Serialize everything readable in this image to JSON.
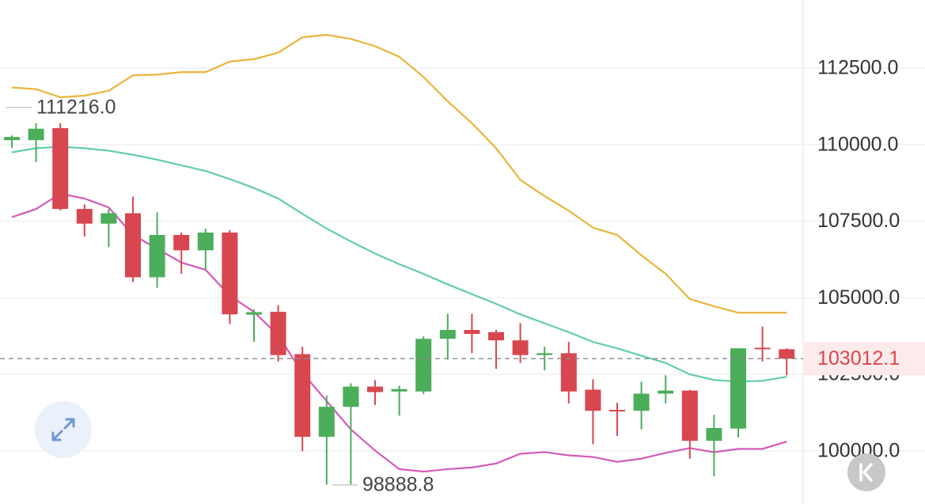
{
  "chart_data": {
    "type": "candlestick",
    "ylim": [
      98267,
      114722
    ],
    "yticks": [
      {
        "value": 112500,
        "label": "112500.0"
      },
      {
        "value": 110000,
        "label": "110000.0"
      },
      {
        "value": 107500,
        "label": "107500.0"
      },
      {
        "value": 105000,
        "label": "105000.0"
      },
      {
        "value": 102500,
        "label": "102500.0"
      },
      {
        "value": 100000,
        "label": "100000.0"
      }
    ],
    "grid": true,
    "up_color": "#4cad5b",
    "down_color": "#d8474f",
    "candles": [
      {
        "open": 110146,
        "high": 110300,
        "low": 109900,
        "close": 110250
      },
      {
        "open": 110146,
        "high": 110700,
        "low": 109430,
        "close": 110520
      },
      {
        "open": 110540,
        "high": 110700,
        "low": 107850,
        "close": 107900
      },
      {
        "open": 107900,
        "high": 108050,
        "low": 107000,
        "close": 107420
      },
      {
        "open": 107420,
        "high": 107900,
        "low": 106650,
        "close": 107760
      },
      {
        "open": 107760,
        "high": 108300,
        "low": 105510,
        "close": 105670
      },
      {
        "open": 105670,
        "high": 107790,
        "low": 105330,
        "close": 107050
      },
      {
        "open": 107050,
        "high": 107130,
        "low": 105780,
        "close": 106550
      },
      {
        "open": 106550,
        "high": 107260,
        "low": 105910,
        "close": 107130
      },
      {
        "open": 107130,
        "high": 107210,
        "low": 104140,
        "close": 104460
      },
      {
        "open": 104450,
        "high": 104620,
        "low": 103560,
        "close": 104530
      },
      {
        "open": 104540,
        "high": 104750,
        "low": 102920,
        "close": 103130
      },
      {
        "open": 103160,
        "high": 103400,
        "low": 99990,
        "close": 100460
      },
      {
        "open": 100460,
        "high": 101810,
        "low": 98900,
        "close": 101440
      },
      {
        "open": 101440,
        "high": 102210,
        "low": 98888.8,
        "close": 102100
      },
      {
        "open": 102100,
        "high": 102310,
        "low": 101500,
        "close": 101920
      },
      {
        "open": 101940,
        "high": 102130,
        "low": 101150,
        "close": 102020
      },
      {
        "open": 101940,
        "high": 103740,
        "low": 101860,
        "close": 103660
      },
      {
        "open": 103660,
        "high": 104480,
        "low": 102980,
        "close": 103950
      },
      {
        "open": 103950,
        "high": 104480,
        "low": 103190,
        "close": 103820
      },
      {
        "open": 103880,
        "high": 103950,
        "low": 102680,
        "close": 103610
      },
      {
        "open": 103610,
        "high": 104170,
        "low": 102870,
        "close": 103130
      },
      {
        "open": 103130,
        "high": 103400,
        "low": 102630,
        "close": 103190
      },
      {
        "open": 103190,
        "high": 103560,
        "low": 101550,
        "close": 101940
      },
      {
        "open": 102000,
        "high": 102340,
        "low": 100220,
        "close": 101310
      },
      {
        "open": 101340,
        "high": 101570,
        "low": 100490,
        "close": 101290
      },
      {
        "open": 101310,
        "high": 102260,
        "low": 100700,
        "close": 101870
      },
      {
        "open": 101870,
        "high": 102470,
        "low": 101550,
        "close": 101970
      },
      {
        "open": 101970,
        "high": 101990,
        "low": 99750,
        "close": 100330
      },
      {
        "open": 100330,
        "high": 101180,
        "low": 99170,
        "close": 100750
      },
      {
        "open": 100730,
        "high": 103350,
        "low": 100440,
        "close": 103350
      },
      {
        "open": 103370,
        "high": 104060,
        "low": 102920,
        "close": 103320
      },
      {
        "open": 103320,
        "high": 103350,
        "low": 102470,
        "close": 103012.1
      }
    ],
    "series": [
      {
        "color": "#e9b53c",
        "values": [
          111865,
          111812,
          111548,
          111600,
          111760,
          112262,
          112288,
          112368,
          112368,
          112712,
          112791,
          113003,
          113505,
          113585,
          113452,
          113214,
          112870,
          112209,
          111415,
          110701,
          109881,
          108849,
          108320,
          107844,
          107288,
          107050,
          106389,
          105780,
          104960,
          104722,
          104511,
          104511,
          104511
        ]
      },
      {
        "color": "#62ccb2",
        "values": [
          109749,
          109881,
          109934,
          109881,
          109802,
          109669,
          109510,
          109325,
          109140,
          108876,
          108585,
          108241,
          107738,
          107262,
          106839,
          106442,
          106098,
          105780,
          105437,
          105119,
          104802,
          104458,
          104167,
          103876,
          103559,
          103347,
          103109,
          102871,
          102501,
          102316,
          102263,
          102289,
          102421
        ]
      },
      {
        "color": "#d35bb9",
        "values": [
          107632,
          107897,
          108400,
          108241,
          107950,
          107050,
          106601,
          106151,
          105913,
          105067,
          104538,
          103770,
          102553,
          101627,
          100701,
          100013,
          99405,
          99325,
          99405,
          99458,
          99590,
          99908,
          99960,
          99855,
          99802,
          99643,
          99749,
          99934,
          100093,
          99960,
          100066,
          100066,
          100304
        ]
      }
    ],
    "annotations": [
      {
        "value": 111216,
        "label": "111216.0"
      },
      {
        "value": 98888.8,
        "label": "98888.8"
      }
    ],
    "last_price": 103012.1
  }
}
